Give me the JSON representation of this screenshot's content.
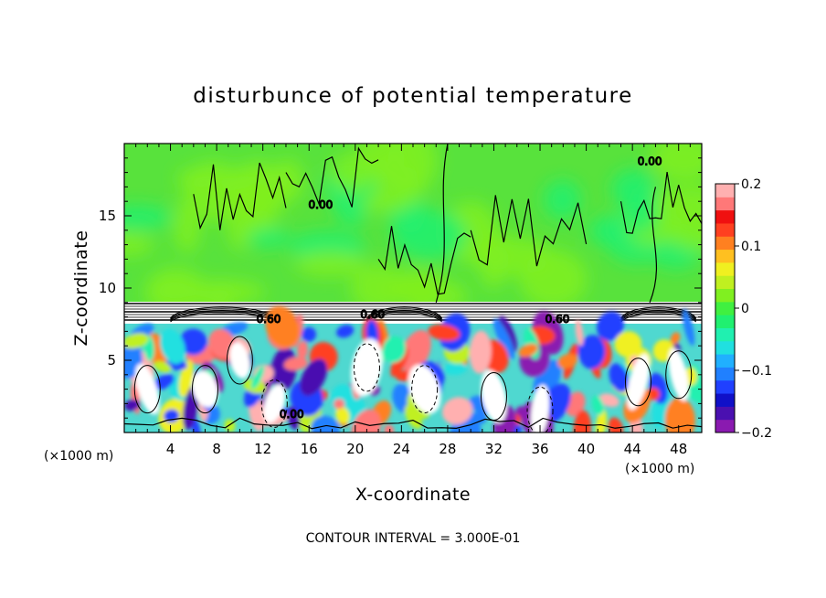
{
  "chart_data": {
    "type": "heatmap",
    "title": "disturbunce of potential temperature",
    "xlabel": "X-coordinate",
    "ylabel": "Z-coordinate",
    "x_unit": "(×1000 m)",
    "footer": "CONTOUR INTERVAL = 3.000E-01",
    "xlim": [
      0,
      50
    ],
    "ylim": [
      0,
      20
    ],
    "x_ticks": [
      4,
      8,
      12,
      16,
      20,
      24,
      28,
      32,
      36,
      40,
      44,
      48
    ],
    "y_ticks": [
      5,
      10,
      15
    ],
    "contour_interval": 0.3,
    "contour_labels": [
      "0.60",
      "0.60",
      "0.60",
      "0.00",
      "0.00",
      "0.00"
    ],
    "colorbar": {
      "min": -0.2,
      "max": 0.2,
      "ticks": [
        "0.2",
        "0.1",
        "0",
        "-0.1",
        "-0.2"
      ],
      "colors": [
        "#8a1ab0",
        "#4a10b0",
        "#1010c8",
        "#2040ff",
        "#2080ff",
        "#20b0ff",
        "#20e0e0",
        "#20f0b0",
        "#20f070",
        "#40f040",
        "#80f020",
        "#c0f020",
        "#f0f020",
        "#ffc020",
        "#ff8020",
        "#ff4020",
        "#f01010",
        "#ff7878",
        "#ffb0b0"
      ]
    },
    "regions": {
      "upper_layer": {
        "z_range": [
          9,
          20
        ],
        "dominant_value": 0.0
      },
      "inversion": {
        "z_range": [
          7.5,
          9
        ]
      },
      "lower_layer": {
        "z_range": [
          0,
          7.5
        ],
        "value_range": [
          -0.2,
          0.2
        ]
      }
    },
    "grid": false
  }
}
